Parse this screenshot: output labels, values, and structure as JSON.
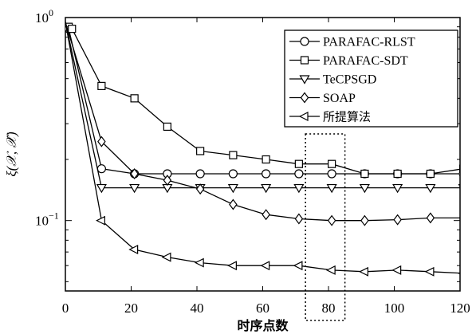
{
  "chart_data": {
    "type": "line",
    "xlabel": "时序点数",
    "ylabel": "ξ(𝒳, 𝒳̂)",
    "yscale": "log",
    "xlim": [
      0,
      120
    ],
    "ylim": [
      0.045,
      1.0
    ],
    "x_ticks": [
      0,
      20,
      40,
      60,
      80,
      100,
      120
    ],
    "x_tick_labels": [
      "0",
      "20",
      "40",
      "60",
      "80",
      "100",
      "120"
    ],
    "y_ticks": [
      1.0,
      0.1
    ],
    "y_tick_labels": [
      {
        "base": "10",
        "exp": "0"
      },
      {
        "base": "10",
        "exp": "−1"
      }
    ],
    "grid": false,
    "legend_position": "top-right",
    "highlight_box": {
      "x_from": 73,
      "x_to": 85,
      "style": "dotted"
    },
    "series": [
      {
        "name": "PARAFAC-RLST",
        "marker": "circle",
        "x": [
          0,
          1,
          11,
          21,
          31,
          41,
          51,
          61,
          71,
          81,
          91,
          101,
          111,
          121
        ],
        "y": [
          0.95,
          0.88,
          0.18,
          0.17,
          0.17,
          0.17,
          0.17,
          0.17,
          0.17,
          0.17,
          0.17,
          0.17,
          0.17,
          0.17
        ]
      },
      {
        "name": "PARAFAC-SDT",
        "marker": "square",
        "x": [
          1,
          2,
          11,
          21,
          31,
          41,
          51,
          61,
          71,
          81,
          91,
          101,
          111,
          121
        ],
        "y": [
          0.9,
          0.88,
          0.46,
          0.4,
          0.29,
          0.22,
          0.21,
          0.2,
          0.19,
          0.19,
          0.17,
          0.17,
          0.17,
          0.18
        ]
      },
      {
        "name": "TeCPSGD",
        "marker": "triangle-down",
        "x": [
          0,
          11,
          21,
          31,
          41,
          51,
          61,
          71,
          81,
          91,
          101,
          111,
          121
        ],
        "y": [
          0.95,
          0.145,
          0.145,
          0.145,
          0.145,
          0.145,
          0.145,
          0.145,
          0.145,
          0.145,
          0.145,
          0.145,
          0.145
        ]
      },
      {
        "name": "SOAP",
        "marker": "diamond",
        "x": [
          0,
          11,
          21,
          31,
          41,
          51,
          61,
          71,
          81,
          91,
          101,
          111,
          121
        ],
        "y": [
          0.95,
          0.245,
          0.17,
          0.158,
          0.143,
          0.12,
          0.107,
          0.102,
          0.1,
          0.1,
          0.101,
          0.103,
          0.103
        ]
      },
      {
        "name": "所提算法",
        "marker": "triangle-left",
        "x": [
          0,
          11,
          21,
          31,
          41,
          51,
          61,
          71,
          81,
          91,
          101,
          111,
          121
        ],
        "y": [
          0.95,
          0.1,
          0.072,
          0.066,
          0.062,
          0.06,
          0.06,
          0.06,
          0.057,
          0.056,
          0.057,
          0.056,
          0.055
        ]
      }
    ]
  }
}
